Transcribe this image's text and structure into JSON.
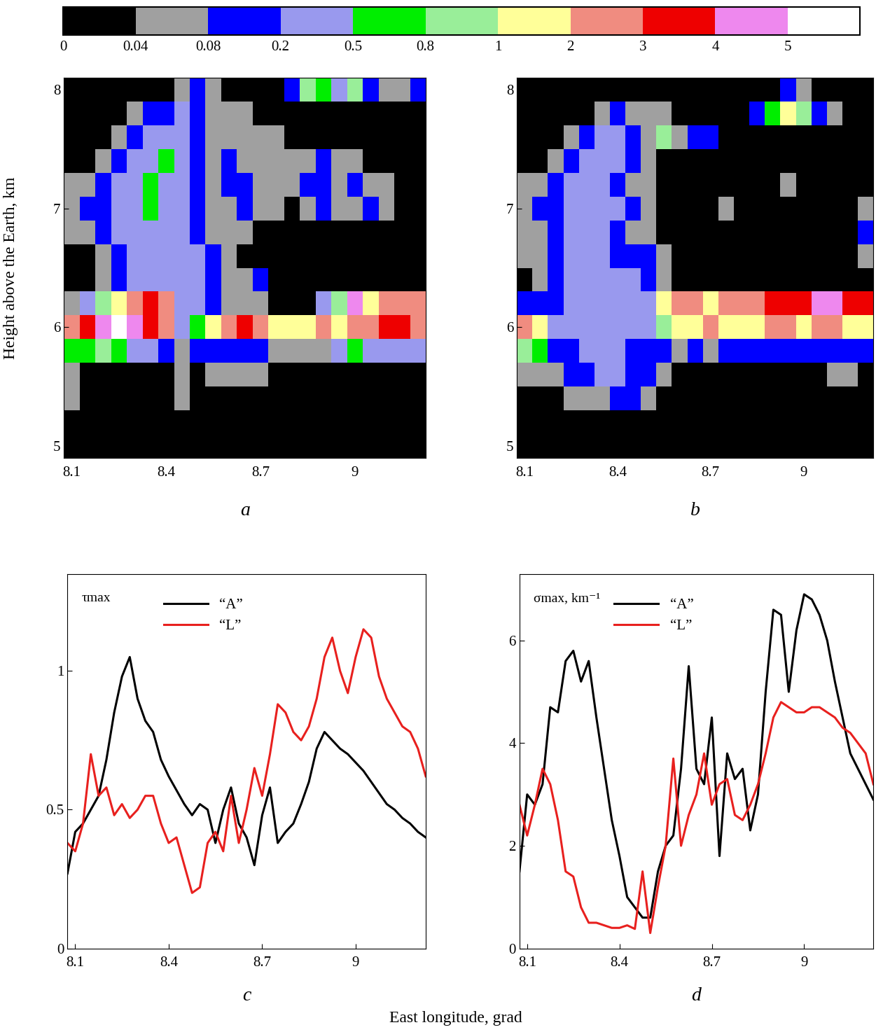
{
  "figure": {
    "ylabel": "Height above the Earth, km",
    "xlabel": "East longitude, grad"
  },
  "colorbar": {
    "ticks": [
      0,
      0.04,
      0.08,
      0.2,
      0.5,
      0.8,
      1,
      2,
      3,
      4,
      5
    ],
    "colors": [
      "#000000",
      "#a0a0a0",
      "#0000ff",
      "#9999ee",
      "#00ee00",
      "#99ee99",
      "#ffff99",
      "#f08c80",
      "#ee0000",
      "#ee88ee",
      "#ffffff"
    ]
  },
  "chart_data": [
    {
      "type": "heatmap",
      "panel": "a",
      "x": [
        8.1,
        8.15,
        8.2,
        8.25,
        8.3,
        8.35,
        8.4,
        8.45,
        8.5,
        8.55,
        8.6,
        8.65,
        8.7,
        8.75,
        8.8,
        8.85,
        8.9,
        8.95,
        9.0,
        9.05,
        9.1,
        9.15,
        9.2
      ],
      "y": [
        5.0,
        5.2,
        5.4,
        5.6,
        5.8,
        6.0,
        6.2,
        6.4,
        6.6,
        6.8,
        7.0,
        7.2,
        7.4,
        7.6,
        7.8,
        8.0
      ],
      "xlim": [
        8.075,
        9.225
      ],
      "ylim": [
        4.9,
        8.1
      ],
      "xticks": [
        8.1,
        8.4,
        8.7,
        9
      ],
      "yticks": [
        5,
        6,
        7,
        8
      ],
      "cells": [
        [
          0,
          0,
          0,
          0,
          0,
          0,
          0,
          0,
          0,
          0,
          0,
          0,
          0,
          0,
          0,
          0,
          0,
          0,
          0,
          0,
          0,
          0,
          0
        ],
        [
          0,
          0,
          0,
          0,
          0,
          0,
          0,
          0,
          0,
          0,
          0,
          0,
          0,
          0,
          0,
          0,
          0,
          0,
          0,
          0,
          0,
          0,
          0
        ],
        [
          0.05,
          0,
          0,
          0,
          0,
          0,
          0,
          0.05,
          0,
          0,
          0,
          0,
          0,
          0,
          0,
          0,
          0,
          0,
          0,
          0,
          0,
          0,
          0
        ],
        [
          0.05,
          0,
          0,
          0,
          0,
          0,
          0,
          0.05,
          0,
          0.05,
          0.05,
          0.05,
          0.05,
          0,
          0,
          0,
          0,
          0,
          0,
          0,
          0,
          0,
          0
        ],
        [
          0.6,
          0.6,
          0.9,
          0.6,
          0.3,
          0.3,
          0.1,
          0.05,
          0.1,
          0.1,
          0.1,
          0.1,
          0.1,
          0.05,
          0.05,
          0.05,
          0.05,
          0.3,
          0.6,
          0.3,
          0.3,
          0.3,
          0.3
        ],
        [
          2.5,
          3.5,
          4.5,
          6,
          4.5,
          3.5,
          2.5,
          0.3,
          0.6,
          1.5,
          2.5,
          3.5,
          2.5,
          1.5,
          1.5,
          1.5,
          2.5,
          1.5,
          2.5,
          2.5,
          3.5,
          3.5,
          2.5
        ],
        [
          0.05,
          0.3,
          0.9,
          1.5,
          2.5,
          3.5,
          2.5,
          0.3,
          0.3,
          0.1,
          0.05,
          0.05,
          0.05,
          0,
          0,
          0,
          0.3,
          0.9,
          4.5,
          1.5,
          2.5,
          2.5,
          2.5
        ],
        [
          0,
          0,
          0.05,
          0.1,
          0.3,
          0.3,
          0.3,
          0.3,
          0.3,
          0.1,
          0.05,
          0.05,
          0.1,
          0,
          0,
          0,
          0,
          0,
          0,
          0,
          0,
          0,
          0
        ],
        [
          0,
          0,
          0.05,
          0.1,
          0.3,
          0.3,
          0.3,
          0.3,
          0.3,
          0.1,
          0.05,
          0,
          0,
          0,
          0,
          0,
          0,
          0,
          0,
          0,
          0,
          0,
          0
        ],
        [
          0.05,
          0.05,
          0.1,
          0.3,
          0.3,
          0.3,
          0.3,
          0.3,
          0.1,
          0.05,
          0.05,
          0.05,
          0,
          0,
          0,
          0,
          0,
          0,
          0,
          0,
          0,
          0,
          0
        ],
        [
          0.05,
          0.1,
          0.1,
          0.3,
          0.3,
          0.6,
          0.3,
          0.3,
          0.1,
          0.05,
          0.05,
          0.1,
          0.05,
          0.05,
          0,
          0.05,
          0.1,
          0.05,
          0.05,
          0.1,
          0.05,
          0,
          0
        ],
        [
          0.05,
          0.05,
          0.1,
          0.3,
          0.3,
          0.6,
          0.3,
          0.3,
          0.1,
          0.05,
          0.1,
          0.1,
          0.05,
          0.05,
          0.05,
          0.1,
          0.1,
          0.05,
          0.1,
          0.05,
          0.05,
          0,
          0
        ],
        [
          0,
          0,
          0.05,
          0.1,
          0.3,
          0.3,
          0.6,
          0.3,
          0.1,
          0.05,
          0.1,
          0.05,
          0.05,
          0.05,
          0.05,
          0.05,
          0.1,
          0.05,
          0.05,
          0,
          0,
          0,
          0
        ],
        [
          0,
          0,
          0,
          0.05,
          0.1,
          0.3,
          0.3,
          0.3,
          0.1,
          0.05,
          0.05,
          0.05,
          0.05,
          0.05,
          0,
          0,
          0,
          0,
          0,
          0,
          0,
          0,
          0
        ],
        [
          0,
          0,
          0,
          0,
          0.05,
          0.1,
          0.1,
          0.3,
          0.1,
          0.05,
          0.05,
          0.05,
          0,
          0,
          0,
          0,
          0,
          0,
          0,
          0,
          0,
          0,
          0
        ],
        [
          0,
          0,
          0,
          0,
          0,
          0,
          0,
          0.05,
          0.1,
          0.05,
          0,
          0,
          0,
          0,
          0.1,
          0.9,
          0.6,
          0.3,
          0.9,
          0.1,
          0.05,
          0.05,
          0.1
        ]
      ]
    },
    {
      "type": "heatmap",
      "panel": "b",
      "x": [
        8.1,
        8.15,
        8.2,
        8.25,
        8.3,
        8.35,
        8.4,
        8.45,
        8.5,
        8.55,
        8.6,
        8.65,
        8.7,
        8.75,
        8.8,
        8.85,
        8.9,
        8.95,
        9.0,
        9.05,
        9.1,
        9.15,
        9.2
      ],
      "y": [
        5.0,
        5.2,
        5.4,
        5.6,
        5.8,
        6.0,
        6.2,
        6.4,
        6.6,
        6.8,
        7.0,
        7.2,
        7.4,
        7.6,
        7.8,
        8.0
      ],
      "xlim": [
        8.075,
        9.225
      ],
      "ylim": [
        4.9,
        8.1
      ],
      "xticks": [
        8.1,
        8.4,
        8.7,
        9
      ],
      "yticks": [
        5,
        6,
        7,
        8
      ],
      "cells": [
        [
          0,
          0,
          0,
          0,
          0,
          0,
          0,
          0,
          0,
          0,
          0,
          0,
          0,
          0,
          0,
          0,
          0,
          0,
          0,
          0,
          0,
          0,
          0
        ],
        [
          0,
          0,
          0,
          0,
          0,
          0,
          0,
          0,
          0,
          0,
          0,
          0,
          0,
          0,
          0,
          0,
          0,
          0,
          0,
          0,
          0,
          0,
          0
        ],
        [
          0,
          0,
          0,
          0.05,
          0.05,
          0.05,
          0.1,
          0.1,
          0.05,
          0,
          0,
          0,
          0,
          0,
          0,
          0,
          0,
          0,
          0,
          0,
          0,
          0,
          0
        ],
        [
          0.05,
          0.05,
          0.05,
          0.1,
          0.1,
          0.3,
          0.3,
          0.1,
          0.1,
          0.05,
          0,
          0,
          0,
          0,
          0,
          0,
          0,
          0,
          0,
          0,
          0.05,
          0.05,
          0
        ],
        [
          0.9,
          0.6,
          0.1,
          0.1,
          0.3,
          0.3,
          0.3,
          0.1,
          0.1,
          0.1,
          0.05,
          0.1,
          0.05,
          0.1,
          0.1,
          0.1,
          0.1,
          0.1,
          0.1,
          0.1,
          0.1,
          0.1,
          0.1
        ],
        [
          2.5,
          1.5,
          0.3,
          0.3,
          0.3,
          0.3,
          0.3,
          0.3,
          0.3,
          0.9,
          1.5,
          1.5,
          2.5,
          1.5,
          1.5,
          1.5,
          2.5,
          2.5,
          1.5,
          2.5,
          2.5,
          1.5,
          1.5
        ],
        [
          0.1,
          0.1,
          0.1,
          0.3,
          0.3,
          0.3,
          0.3,
          0.3,
          0.3,
          1.5,
          2.5,
          2.5,
          1.5,
          2.5,
          2.5,
          2.5,
          3.5,
          3.5,
          3.5,
          4.5,
          4.5,
          3.5,
          3.5
        ],
        [
          0,
          0.05,
          0.1,
          0.3,
          0.3,
          0.3,
          0.3,
          0.3,
          0.1,
          0.05,
          0,
          0,
          0,
          0,
          0,
          0,
          0,
          0,
          0,
          0,
          0,
          0,
          0
        ],
        [
          0.05,
          0.05,
          0.1,
          0.3,
          0.3,
          0.3,
          0.1,
          0.1,
          0.1,
          0.05,
          0,
          0,
          0,
          0,
          0,
          0,
          0,
          0,
          0,
          0,
          0,
          0,
          0.05
        ],
        [
          0.05,
          0.05,
          0.1,
          0.3,
          0.3,
          0.3,
          0.1,
          0.05,
          0.05,
          0,
          0,
          0,
          0,
          0,
          0,
          0,
          0,
          0,
          0,
          0,
          0,
          0,
          0.1
        ],
        [
          0.05,
          0.1,
          0.1,
          0.3,
          0.3,
          0.3,
          0.3,
          0.1,
          0.05,
          0,
          0,
          0,
          0,
          0.05,
          0,
          0,
          0,
          0,
          0,
          0,
          0,
          0,
          0.05
        ],
        [
          0.05,
          0.05,
          0.1,
          0.3,
          0.3,
          0.3,
          0.1,
          0.05,
          0.05,
          0,
          0,
          0,
          0,
          0,
          0,
          0,
          0,
          0.05,
          0,
          0,
          0,
          0,
          0
        ],
        [
          0,
          0,
          0.05,
          0.1,
          0.3,
          0.3,
          0.3,
          0.1,
          0.05,
          0,
          0,
          0,
          0,
          0,
          0,
          0,
          0,
          0,
          0,
          0,
          0,
          0,
          0
        ],
        [
          0,
          0,
          0,
          0.05,
          0.1,
          0.3,
          0.3,
          0.1,
          0.05,
          0.9,
          0.05,
          0.1,
          0.1,
          0,
          0,
          0,
          0,
          0,
          0,
          0,
          0,
          0,
          0
        ],
        [
          0,
          0,
          0,
          0,
          0,
          0.05,
          0.1,
          0.05,
          0.05,
          0.05,
          0,
          0,
          0,
          0,
          0,
          0.1,
          0.6,
          1.5,
          0.9,
          0.1,
          0.05,
          0,
          0
        ],
        [
          0,
          0,
          0,
          0,
          0,
          0,
          0,
          0,
          0,
          0,
          0,
          0,
          0,
          0,
          0,
          0,
          0,
          0.1,
          0.05,
          0,
          0,
          0,
          0
        ]
      ]
    },
    {
      "type": "line",
      "panel": "c",
      "annotation": "τmax",
      "legend": "upper center",
      "x": [
        8.075,
        8.1,
        8.125,
        8.15,
        8.175,
        8.2,
        8.225,
        8.25,
        8.275,
        8.3,
        8.325,
        8.35,
        8.375,
        8.4,
        8.425,
        8.45,
        8.475,
        8.5,
        8.525,
        8.55,
        8.575,
        8.6,
        8.625,
        8.65,
        8.675,
        8.7,
        8.725,
        8.75,
        8.775,
        8.8,
        8.825,
        8.85,
        8.875,
        8.9,
        8.925,
        8.95,
        8.975,
        9.0,
        9.025,
        9.05,
        9.075,
        9.1,
        9.125,
        9.15,
        9.175,
        9.2,
        9.225
      ],
      "xlim": [
        8.075,
        9.225
      ],
      "ylim": [
        0,
        1.35
      ],
      "xticks": [
        8.1,
        8.4,
        8.7,
        9
      ],
      "yticks": [
        0,
        0.5,
        1
      ],
      "series": [
        {
          "name": "“A”",
          "color": "#000000",
          "values": [
            0.27,
            0.42,
            0.45,
            0.5,
            0.55,
            0.68,
            0.85,
            0.98,
            1.05,
            0.9,
            0.82,
            0.78,
            0.68,
            0.62,
            0.57,
            0.52,
            0.48,
            0.52,
            0.5,
            0.38,
            0.5,
            0.58,
            0.45,
            0.4,
            0.3,
            0.48,
            0.58,
            0.38,
            0.42,
            0.45,
            0.52,
            0.6,
            0.72,
            0.78,
            0.75,
            0.72,
            0.7,
            0.67,
            0.64,
            0.6,
            0.56,
            0.52,
            0.5,
            0.47,
            0.45,
            0.42,
            0.4
          ]
        },
        {
          "name": "“L”",
          "color": "#e8201e",
          "values": [
            0.38,
            0.35,
            0.45,
            0.7,
            0.55,
            0.58,
            0.48,
            0.52,
            0.47,
            0.5,
            0.55,
            0.55,
            0.45,
            0.38,
            0.4,
            0.3,
            0.2,
            0.22,
            0.38,
            0.42,
            0.35,
            0.55,
            0.38,
            0.5,
            0.65,
            0.55,
            0.7,
            0.88,
            0.85,
            0.78,
            0.75,
            0.8,
            0.9,
            1.05,
            1.12,
            1.0,
            0.92,
            1.05,
            1.15,
            1.12,
            0.98,
            0.9,
            0.85,
            0.8,
            0.78,
            0.72,
            0.62
          ]
        }
      ]
    },
    {
      "type": "line",
      "panel": "d",
      "annotation": "σmax, km⁻¹",
      "legend": "upper center",
      "x": [
        8.075,
        8.1,
        8.125,
        8.15,
        8.175,
        8.2,
        8.225,
        8.25,
        8.275,
        8.3,
        8.325,
        8.35,
        8.375,
        8.4,
        8.425,
        8.45,
        8.475,
        8.5,
        8.525,
        8.55,
        8.575,
        8.6,
        8.625,
        8.65,
        8.675,
        8.7,
        8.725,
        8.75,
        8.775,
        8.8,
        8.825,
        8.85,
        8.875,
        8.9,
        8.925,
        8.95,
        8.975,
        9.0,
        9.025,
        9.05,
        9.075,
        9.1,
        9.125,
        9.15,
        9.175,
        9.2,
        9.225
      ],
      "xlim": [
        8.075,
        9.225
      ],
      "ylim": [
        0,
        7.3
      ],
      "xticks": [
        8.1,
        8.4,
        8.7,
        9
      ],
      "yticks": [
        0,
        2,
        4,
        6
      ],
      "series": [
        {
          "name": "“A”",
          "color": "#000000",
          "values": [
            1.5,
            3.0,
            2.8,
            3.2,
            4.7,
            4.6,
            5.6,
            5.8,
            5.2,
            5.6,
            4.5,
            3.5,
            2.5,
            1.8,
            1.0,
            0.8,
            0.6,
            0.6,
            1.5,
            2.0,
            2.2,
            3.5,
            5.5,
            3.5,
            3.2,
            4.5,
            1.8,
            3.8,
            3.3,
            3.5,
            2.3,
            3.0,
            5.0,
            6.6,
            6.5,
            5.0,
            6.2,
            6.9,
            6.8,
            6.5,
            6.0,
            5.2,
            4.5,
            3.8,
            3.5,
            3.2,
            2.9
          ]
        },
        {
          "name": "“L”",
          "color": "#e8201e",
          "values": [
            2.8,
            2.2,
            2.8,
            3.5,
            3.2,
            2.5,
            1.5,
            1.4,
            0.8,
            0.5,
            0.5,
            0.45,
            0.4,
            0.4,
            0.45,
            0.38,
            1.5,
            0.3,
            1.2,
            2.0,
            3.7,
            2.0,
            2.6,
            3.0,
            3.8,
            2.8,
            3.2,
            3.3,
            2.6,
            2.5,
            2.8,
            3.2,
            3.8,
            4.5,
            4.8,
            4.7,
            4.6,
            4.6,
            4.7,
            4.7,
            4.6,
            4.5,
            4.3,
            4.2,
            4.0,
            3.8,
            3.2
          ]
        }
      ]
    }
  ]
}
